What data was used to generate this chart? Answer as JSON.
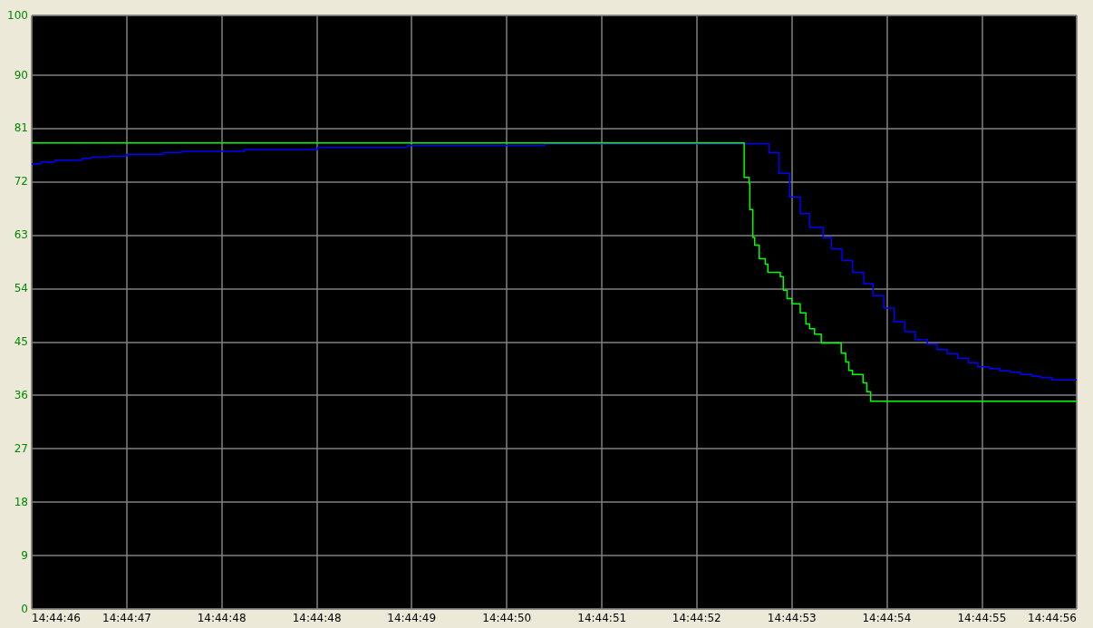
{
  "chart_data": {
    "type": "step",
    "xlim": [
      14.746035,
      14.748813
    ],
    "xticks": [
      {
        "value": 14.746035,
        "label": "14:44:46"
      },
      {
        "value": 14.746288,
        "label": "14:44:47"
      },
      {
        "value": 14.74654,
        "label": "14:44:48"
      },
      {
        "value": 14.746793,
        "label": "14:44:48"
      },
      {
        "value": 14.747045,
        "label": "14:44:49"
      },
      {
        "value": 14.747298,
        "label": "14:44:50"
      },
      {
        "value": 14.747551,
        "label": "14:44:51"
      },
      {
        "value": 14.747803,
        "label": "14:44:52"
      },
      {
        "value": 14.748056,
        "label": "14:44:53"
      },
      {
        "value": 14.748308,
        "label": "14:44:54"
      },
      {
        "value": 14.748561,
        "label": "14:44:55"
      },
      {
        "value": 14.748813,
        "label": "14:44:56"
      }
    ],
    "ylim": [
      0,
      100
    ],
    "yticks": [
      0,
      9,
      18,
      27,
      36,
      45,
      54,
      63,
      72,
      81,
      90,
      100
    ],
    "grid": true,
    "marker": "none",
    "series": [
      {
        "color": "#0000ff",
        "x": [
          14.746035,
          14.74606,
          14.746096,
          14.746169,
          14.746192,
          14.74624,
          14.746288,
          14.746384,
          14.746434,
          14.746601,
          14.746795,
          14.747035,
          14.747399,
          14.747995,
          14.748022,
          14.74805,
          14.748078,
          14.748103,
          14.748139,
          14.748161,
          14.748189,
          14.748217,
          14.748247,
          14.748272,
          14.7483,
          14.748328,
          14.748356,
          14.748384,
          14.748416,
          14.748442,
          14.748469,
          14.748497,
          14.748525,
          14.74855,
          14.748581,
          14.748608,
          14.748636,
          14.748664,
          14.748694,
          14.748717,
          14.748747,
          14.748813
        ],
        "values": [
          75.0,
          75.3,
          75.6,
          75.9,
          76.1,
          76.3,
          76.6,
          76.9,
          77.1,
          77.4,
          77.8,
          78.1,
          78.4,
          76.9,
          73.4,
          69.4,
          66.6,
          64.3,
          62.6,
          60.7,
          58.7,
          56.7,
          54.8,
          52.8,
          50.7,
          48.4,
          46.7,
          45.4,
          44.6,
          43.7,
          43.0,
          42.2,
          41.5,
          40.8,
          40.5,
          40.1,
          39.9,
          39.5,
          39.2,
          39.0,
          38.6,
          38.6
        ]
      },
      {
        "color": "#00ff00",
        "x": [
          14.746035,
          14.747929,
          14.747942,
          14.747944,
          14.747952,
          14.747957,
          14.747969,
          14.747985,
          14.747992,
          14.748025,
          14.748033,
          14.748043,
          14.748056,
          14.748078,
          14.748093,
          14.748103,
          14.748116,
          14.748134,
          14.748187,
          14.748199,
          14.748207,
          14.748217,
          14.748245,
          14.748255,
          14.748265,
          14.748813
        ],
        "values": [
          78.5,
          72.7,
          71.7,
          67.3,
          62.6,
          61.3,
          59.0,
          58.1,
          56.7,
          56.0,
          53.7,
          52.3,
          51.4,
          49.9,
          48.0,
          47.2,
          46.3,
          44.8,
          43.1,
          41.6,
          40.2,
          39.5,
          38.1,
          36.6,
          35.0,
          35.0
        ]
      }
    ]
  }
}
